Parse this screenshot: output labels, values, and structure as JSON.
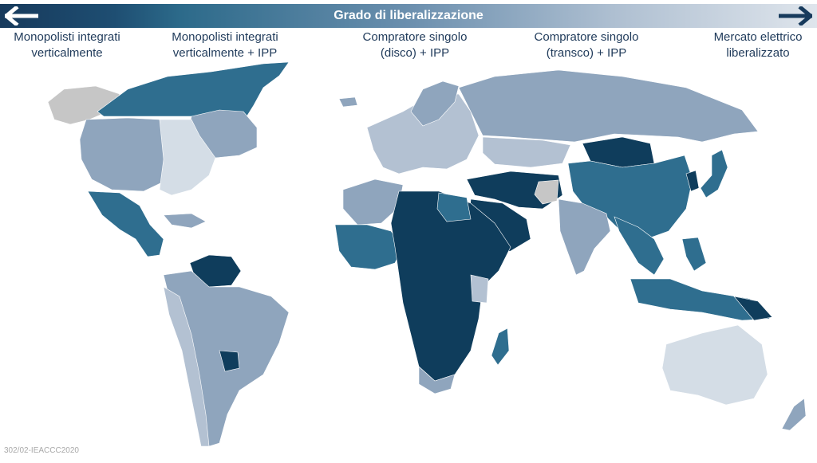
{
  "banner": {
    "title": "Grado di liberalizzazione"
  },
  "icons": {
    "left": "arrow-left-icon",
    "right": "arrow-right-icon"
  },
  "stages": [
    {
      "label_line1": "Monopolisti integrati",
      "label_line2": "verticalmente"
    },
    {
      "label_line1": "Monopolisti integrati",
      "label_line2": "verticalmente + IPP"
    },
    {
      "label_line1": "Compratore singolo",
      "label_line2": "(disco) + IPP"
    },
    {
      "label_line1": "Compratore singolo",
      "label_line2": "(transco) + IPP"
    },
    {
      "label_line1": "Mercato elettrico",
      "label_line2": "liberalizzato"
    }
  ],
  "colors": {
    "monopolisti": "#0f3d5c",
    "monopolisti_ipp": "#2f6e8f",
    "disco_ipp": "#8fa5bd",
    "transco_ipp": "#b3c1d2",
    "liberalizzato": "#d4dde6",
    "no_data": "#c6c6c6"
  },
  "footer": {
    "code": "302/02-IEACCC2020"
  }
}
